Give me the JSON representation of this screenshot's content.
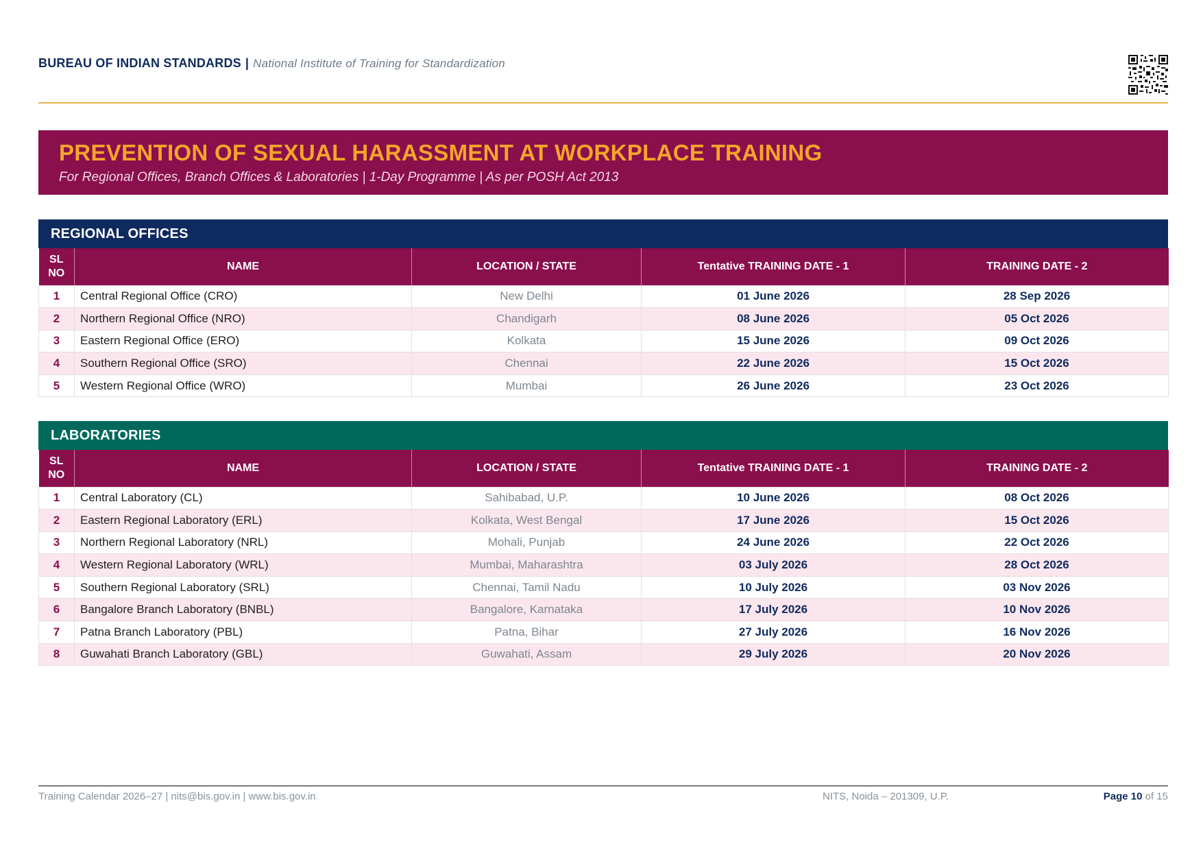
{
  "header": {
    "org": "BUREAU OF INDIAN STANDARDS",
    "separator": "|",
    "institute": "National Institute of Training for Standardization"
  },
  "banner": {
    "title": "PREVENTION OF SEXUAL HARASSMENT AT WORKPLACE TRAINING",
    "subtitle": "For Regional Offices, Branch Offices & Laboratories  |  1-Day Programme  |  As per POSH Act 2013"
  },
  "columns": {
    "sl_line1": "SL",
    "sl_line2": "NO",
    "name": "NAME",
    "location": "LOCATION / STATE",
    "date1": "Tentative TRAINING DATE - 1",
    "date2": "TRAINING DATE - 2"
  },
  "regional": {
    "title": "REGIONAL OFFICES",
    "rows": [
      {
        "sl": "1",
        "name": "Central Regional Office (CRO)",
        "location": "New Delhi",
        "date1": "01 June 2026",
        "date2": "28 Sep 2026"
      },
      {
        "sl": "2",
        "name": "Northern Regional Office (NRO)",
        "location": "Chandigarh",
        "date1": "08 June 2026",
        "date2": "05 Oct 2026"
      },
      {
        "sl": "3",
        "name": "Eastern Regional Office (ERO)",
        "location": "Kolkata",
        "date1": "15 June 2026",
        "date2": "09 Oct 2026"
      },
      {
        "sl": "4",
        "name": "Southern Regional Office (SRO)",
        "location": "Chennai",
        "date1": "22 June 2026",
        "date2": "15 Oct 2026"
      },
      {
        "sl": "5",
        "name": "Western Regional Office (WRO)",
        "location": "Mumbai",
        "date1": "26 June 2026",
        "date2": "23 Oct 2026"
      }
    ]
  },
  "labs": {
    "title": "LABORATORIES",
    "rows": [
      {
        "sl": "1",
        "name": "Central Laboratory (CL)",
        "location": "Sahibabad, U.P.",
        "date1": "10 June 2026",
        "date2": "08 Oct 2026"
      },
      {
        "sl": "2",
        "name": "Eastern Regional Laboratory (ERL)",
        "location": "Kolkata, West Bengal",
        "date1": "17 June  2026",
        "date2": "15 Oct 2026"
      },
      {
        "sl": "3",
        "name": "Northern Regional Laboratory (NRL)",
        "location": "Mohali, Punjab",
        "date1": "24 June 2026",
        "date2": "22 Oct 2026"
      },
      {
        "sl": "4",
        "name": "Western Regional Laboratory (WRL)",
        "location": "Mumbai, Maharashtra",
        "date1": "03  July  2026",
        "date2": "28 Oct 2026"
      },
      {
        "sl": "5",
        "name": "Southern Regional Laboratory (SRL)",
        "location": "Chennai, Tamil Nadu",
        "date1": "10 July 2026",
        "date2": "03 Nov 2026"
      },
      {
        "sl": "6",
        "name": "Bangalore Branch Laboratory (BNBL)",
        "location": "Bangalore, Karnataka",
        "date1": "17 July 2026",
        "date2": "10 Nov 2026"
      },
      {
        "sl": "7",
        "name": "Patna Branch Laboratory (PBL)",
        "location": "Patna, Bihar",
        "date1": "27 July 2026",
        "date2": "16 Nov 2026"
      },
      {
        "sl": "8",
        "name": "Guwahati Branch Laboratory (GBL)",
        "location": "Guwahati, Assam",
        "date1": "29 July 2026",
        "date2": "20 Nov 2026"
      }
    ]
  },
  "footer": {
    "left": "Training Calendar 2026–27  |  nits@bis.gov.in  |  www.bis.gov.in",
    "middle": "NITS, Noida – 201309, U.P.",
    "page_label": "Page",
    "page_num": "10",
    "page_of": "of 15"
  },
  "icons": {
    "qr": "qr-code-icon"
  },
  "colors": {
    "navy": "#0f2a5e",
    "maroon": "#8a0f4d",
    "teal": "#00695c",
    "gold": "#f4a52a",
    "row_alt": "#fbe6ee"
  }
}
